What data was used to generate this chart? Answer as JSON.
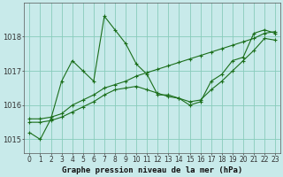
{
  "title": "Graphe pression niveau de la mer (hPa)",
  "background_color": "#c8eaea",
  "grid_color": "#88ccbb",
  "line_color": "#1a6e1a",
  "xlim": [
    -0.5,
    23.5
  ],
  "ylim": [
    1014.6,
    1019.0
  ],
  "yticks": [
    1015,
    1016,
    1017,
    1018
  ],
  "xticks": [
    0,
    1,
    2,
    3,
    4,
    5,
    6,
    7,
    8,
    9,
    10,
    11,
    12,
    13,
    14,
    15,
    16,
    17,
    18,
    19,
    20,
    21,
    22,
    23
  ],
  "xticklabels": [
    "0",
    "1",
    "2",
    "3",
    "4",
    "5",
    "6",
    "7",
    "8",
    "9",
    "10",
    "11",
    "12",
    "13",
    "14",
    "15",
    "16",
    "17",
    "18",
    "19",
    "20",
    "21",
    "22",
    "23"
  ],
  "series": [
    [
      1015.2,
      1015.0,
      1015.6,
      1016.7,
      1017.3,
      1017.0,
      1016.7,
      1018.6,
      1018.2,
      1017.8,
      1017.2,
      1016.9,
      1016.3,
      1016.3,
      1016.2,
      1016.0,
      1016.1,
      1016.7,
      1016.9,
      1017.3,
      1017.4,
      1018.1,
      1018.2,
      1018.1
    ],
    [
      1015.6,
      1015.6,
      1015.65,
      1015.75,
      1016.0,
      1016.15,
      1016.3,
      1016.5,
      1016.6,
      1016.7,
      1016.85,
      1016.95,
      1017.05,
      1017.15,
      1017.25,
      1017.35,
      1017.45,
      1017.55,
      1017.65,
      1017.75,
      1017.85,
      1017.95,
      1018.1,
      1018.15
    ],
    [
      1015.5,
      1015.5,
      1015.55,
      1015.65,
      1015.8,
      1015.95,
      1016.1,
      1016.3,
      1016.45,
      1016.5,
      1016.55,
      1016.45,
      1016.35,
      1016.25,
      1016.2,
      1016.1,
      1016.15,
      1016.45,
      1016.7,
      1017.0,
      1017.3,
      1017.6,
      1017.95,
      1017.9
    ]
  ],
  "marker": "+",
  "markersize": 3,
  "linewidth": 0.8,
  "tick_fontsize": 5.5,
  "label_fontsize": 6.5
}
